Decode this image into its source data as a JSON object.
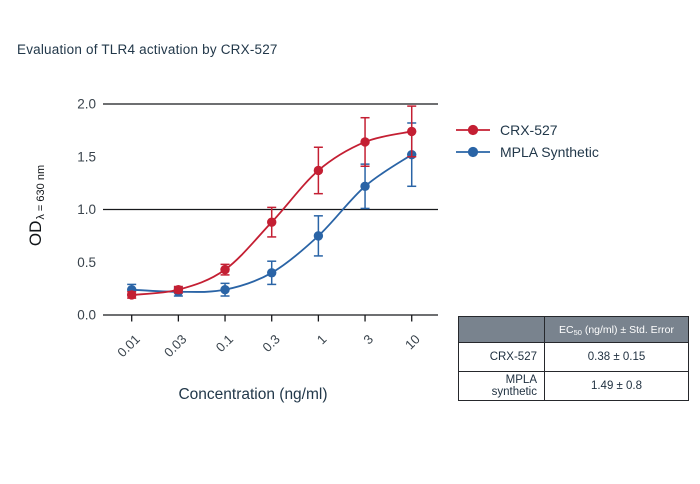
{
  "title": "Evaluation of TLR4 activation by CRX-527",
  "colors": {
    "red_series": "#c41f33",
    "blue_series": "#2a64a6",
    "axis": "#17191c",
    "tick_text": "#39434c",
    "heading_text": "#22384a",
    "table_header_bg": "#79838e",
    "table_border": "#26282c"
  },
  "chart_data": {
    "type": "line",
    "x_scale": "log",
    "x_categories": [
      "0.01",
      "0.03",
      "0.1",
      "0.3",
      "1",
      "3",
      "10"
    ],
    "series": [
      {
        "name": "CRX-527",
        "color": "#c41f33",
        "values": [
          0.19,
          0.24,
          0.43,
          0.88,
          1.37,
          1.64,
          1.74
        ],
        "errors": [
          0.03,
          0.03,
          0.05,
          0.14,
          0.22,
          0.23,
          0.24
        ]
      },
      {
        "name": "MPLA Synthetic",
        "color": "#2a64a6",
        "values": [
          0.24,
          0.22,
          0.24,
          0.4,
          0.75,
          1.22,
          1.52
        ],
        "errors": [
          0.05,
          0.04,
          0.06,
          0.11,
          0.19,
          0.21,
          0.3
        ]
      }
    ],
    "title": "Evaluation of TLR4 activation by CRX-527",
    "xlabel": "Concentration (ng/ml)",
    "ylabel_main": "OD",
    "ylabel_sub": "λ = 630 nm",
    "yticks": [
      "0.0",
      "0.5",
      "1.0",
      "1.5",
      "2.0"
    ],
    "ylim": [
      0,
      2.0
    ],
    "gridlines_at": [
      0,
      1.0,
      2.0
    ],
    "legend_position": "right"
  },
  "legend": {
    "items": [
      {
        "label": "CRX-527",
        "color": "#c41f33"
      },
      {
        "label": "MPLA Synthetic",
        "color": "#2a64a6"
      }
    ]
  },
  "table": {
    "header": {
      "ec_prefix": "EC",
      "ec_sub": "50",
      "ec_suffix": " (ng/ml) ± Std. Error"
    },
    "rows": [
      {
        "label": "CRX-527",
        "value": "0.38 ± 0.15"
      },
      {
        "label": "MPLA synthetic",
        "value": "1.49 ± 0.8"
      }
    ]
  }
}
